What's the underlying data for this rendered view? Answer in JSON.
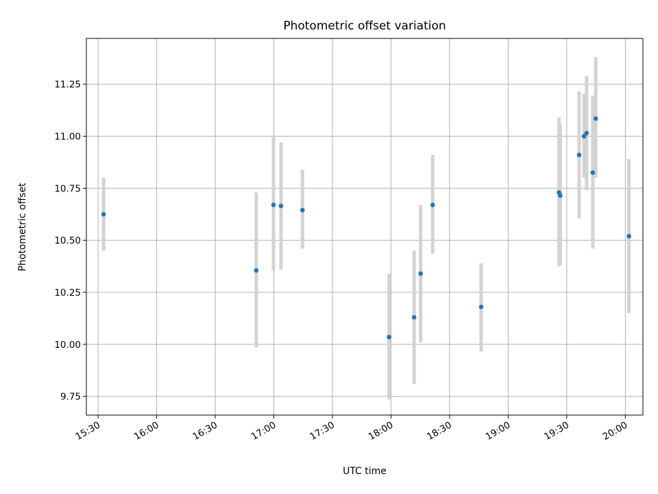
{
  "chart_data": {
    "type": "scatter",
    "title": "Photometric offset variation",
    "xlabel": "UTC time",
    "ylabel": "Photometric offset",
    "x_unit": "UTC time (HH:MM)",
    "xlim": [
      "15:24",
      "20:09"
    ],
    "ylim": [
      9.66,
      11.47
    ],
    "grid": true,
    "x_ticks": [
      "15:30",
      "16:00",
      "16:30",
      "17:00",
      "17:30",
      "18:00",
      "18:30",
      "19:00",
      "19:30",
      "20:00"
    ],
    "y_ticks": [
      9.75,
      10.0,
      10.25,
      10.5,
      10.75,
      11.0,
      11.25
    ],
    "y_tick_labels": [
      "9.75",
      "10.00",
      "10.25",
      "10.50",
      "10.75",
      "11.00",
      "11.25"
    ],
    "marker_color": "#1f77b4",
    "errorbar_color": "#d3d3d3",
    "points": [
      {
        "x": "15:32:50",
        "y": 10.625,
        "yerr_low": 10.45,
        "yerr_high": 10.8
      },
      {
        "x": "16:51:00",
        "y": 10.355,
        "yerr_low": 9.985,
        "yerr_high": 10.73
      },
      {
        "x": "16:59:50",
        "y": 10.67,
        "yerr_low": 10.355,
        "yerr_high": 10.995
      },
      {
        "x": "17:03:40",
        "y": 10.665,
        "yerr_low": 10.36,
        "yerr_high": 10.97
      },
      {
        "x": "17:14:40",
        "y": 10.645,
        "yerr_low": 10.46,
        "yerr_high": 10.84
      },
      {
        "x": "17:59:00",
        "y": 10.035,
        "yerr_low": 9.735,
        "yerr_high": 10.34
      },
      {
        "x": "18:11:50",
        "y": 10.13,
        "yerr_low": 9.81,
        "yerr_high": 10.45
      },
      {
        "x": "18:15:10",
        "y": 10.34,
        "yerr_low": 10.01,
        "yerr_high": 10.67
      },
      {
        "x": "18:21:20",
        "y": 10.67,
        "yerr_low": 10.435,
        "yerr_high": 10.91
      },
      {
        "x": "18:46:10",
        "y": 10.18,
        "yerr_low": 9.965,
        "yerr_high": 10.39
      },
      {
        "x": "19:26:00",
        "y": 10.73,
        "yerr_low": 10.375,
        "yerr_high": 11.09
      },
      {
        "x": "19:26:40",
        "y": 10.715,
        "yerr_low": 10.38,
        "yerr_high": 11.06
      },
      {
        "x": "19:36:20",
        "y": 10.91,
        "yerr_low": 10.605,
        "yerr_high": 11.215
      },
      {
        "x": "19:38:50",
        "y": 11.0,
        "yerr_low": 10.8,
        "yerr_high": 11.205
      },
      {
        "x": "19:40:10",
        "y": 11.015,
        "yerr_low": 10.74,
        "yerr_high": 11.29
      },
      {
        "x": "19:43:20",
        "y": 10.825,
        "yerr_low": 10.46,
        "yerr_high": 11.195
      },
      {
        "x": "19:44:50",
        "y": 11.085,
        "yerr_low": 10.8,
        "yerr_high": 11.38
      },
      {
        "x": "20:01:50",
        "y": 10.52,
        "yerr_low": 10.15,
        "yerr_high": 10.89
      }
    ]
  }
}
